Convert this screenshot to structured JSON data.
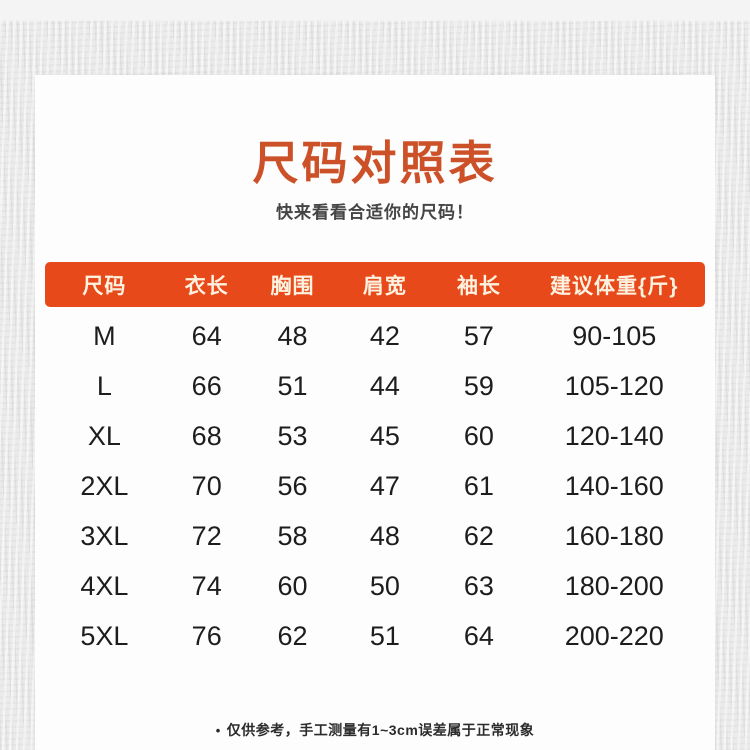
{
  "page": {
    "bullet": "•"
  },
  "colors": {
    "accent_orange": "#E8491B",
    "title_orange": "#CC5128",
    "header_text": "#FCF2DF",
    "body_text": "#1D1D1D",
    "card_background": "#FDFDFD",
    "outer_background": "#E9E9E9"
  },
  "chart_data": {
    "type": "table",
    "title": "尺码对照表",
    "subtitle": "快来看看合适你的尺码！",
    "columns": [
      "尺码",
      "衣长",
      "胸围",
      "肩宽",
      "袖长",
      "建议体重{斤}"
    ],
    "rows": [
      [
        "M",
        "64",
        "48",
        "42",
        "57",
        "90-105"
      ],
      [
        "L",
        "66",
        "51",
        "44",
        "59",
        "105-120"
      ],
      [
        "XL",
        "68",
        "53",
        "45",
        "60",
        "120-140"
      ],
      [
        "2XL",
        "70",
        "56",
        "47",
        "61",
        "140-160"
      ],
      [
        "3XL",
        "72",
        "58",
        "48",
        "62",
        "160-180"
      ],
      [
        "4XL",
        "74",
        "60",
        "50",
        "63",
        "180-200"
      ],
      [
        "5XL",
        "76",
        "62",
        "51",
        "64",
        "200-220"
      ]
    ],
    "note": "仅供参考，手工测量有1~3cm误差属于正常现象"
  }
}
